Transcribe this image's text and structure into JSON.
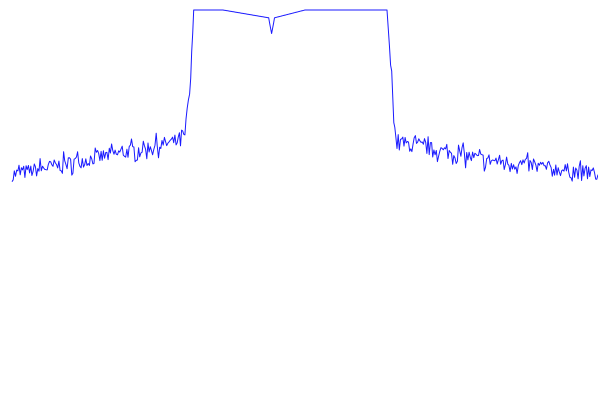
{
  "chart_data": {
    "type": "line",
    "title": "",
    "xlabel": "",
    "ylabel": "",
    "xlim": [
      0,
      100
    ],
    "ylim": [
      0,
      100
    ],
    "grid": false,
    "legend": "none",
    "color": "#1a1aff",
    "series": [
      {
        "x": [
          0,
          5,
          10,
          15,
          20,
          25,
          28,
          29.5,
          30.5,
          31,
          36,
          43.8,
          44.3,
          44.8,
          50,
          60,
          64,
          64.8,
          65.5,
          66.5,
          70,
          75,
          80,
          85,
          90,
          95,
          100
        ],
        "y": [
          58,
          59.5,
          61,
          62.5,
          64,
          65.5,
          66.5,
          68,
          82,
          100,
          100,
          98,
          94,
          98,
          100,
          100,
          100,
          82,
          67,
          66,
          65,
          63.5,
          62,
          61,
          60,
          59,
          58
        ]
      }
    ],
    "noise_amplitude": 1.8
  }
}
